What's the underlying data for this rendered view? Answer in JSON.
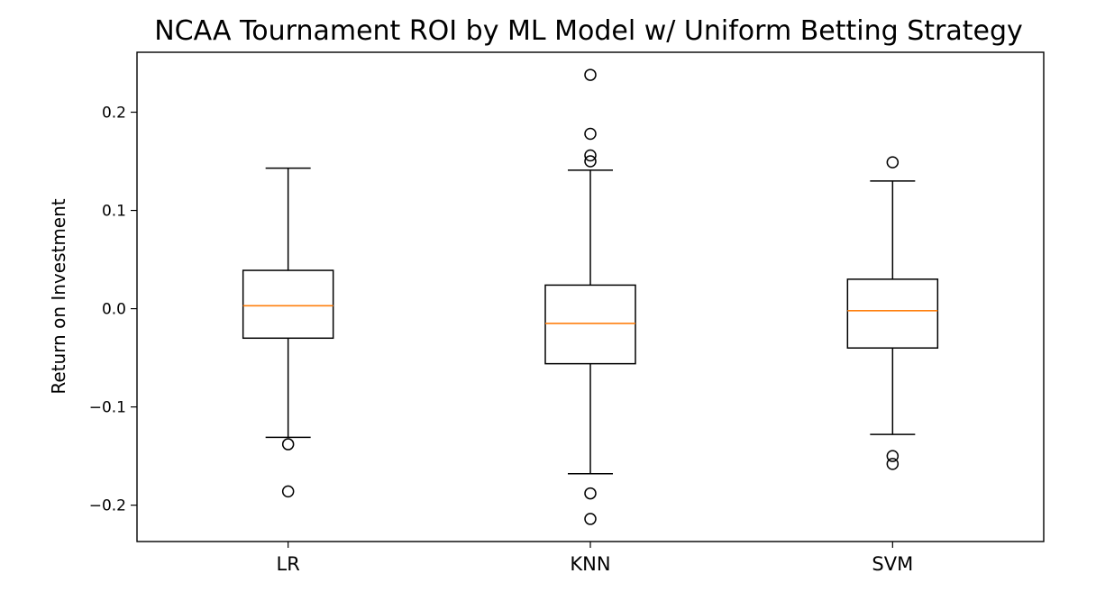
{
  "chart_data": {
    "type": "box",
    "title": "NCAA Tournament ROI by ML Model w/ Uniform Betting Strategy",
    "xlabel": "",
    "ylabel": "Return on Investment",
    "ylim": [
      -0.237,
      0.261
    ],
    "yticks": [
      0.2,
      0.1,
      0.0,
      -0.1,
      -0.2
    ],
    "ytick_labels": [
      "0.2",
      "0.1",
      "0.0",
      "−0.1",
      "−0.2"
    ],
    "categories": [
      "LR",
      "KNN",
      "SVM"
    ],
    "boxes": [
      {
        "name": "LR",
        "whisker_low": -0.131,
        "q1": -0.03,
        "median": 0.003,
        "q3": 0.039,
        "whisker_high": 0.143,
        "outliers": [
          -0.138,
          -0.186
        ]
      },
      {
        "name": "KNN",
        "whisker_low": -0.168,
        "q1": -0.056,
        "median": -0.015,
        "q3": 0.024,
        "whisker_high": 0.141,
        "outliers": [
          0.238,
          0.178,
          0.156,
          0.15,
          -0.188,
          -0.214
        ]
      },
      {
        "name": "SVM",
        "whisker_low": -0.128,
        "q1": -0.04,
        "median": -0.002,
        "q3": 0.03,
        "whisker_high": 0.13,
        "outliers": [
          0.149,
          -0.15,
          -0.158
        ]
      }
    ],
    "grid": false,
    "colors": {
      "box": "#000000",
      "median": "#ff7f0e",
      "outlier": "#000000"
    }
  }
}
